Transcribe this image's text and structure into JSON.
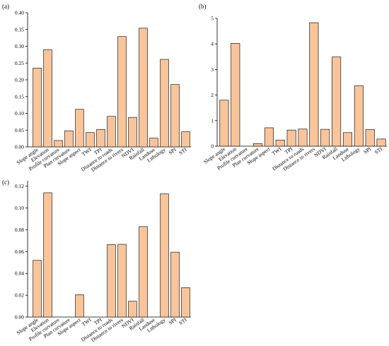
{
  "style": {
    "bar_fill": "#f9c49a",
    "bar_stroke": "#1a1a1a",
    "axis_color": "#000000"
  },
  "chart_data": [
    {
      "type": "bar",
      "panel_label": "(a)",
      "categories": [
        "Slope angle",
        "Elevation",
        "Profile curvature",
        "Plan curvature",
        "Slope aspect",
        "TWI",
        "TPI",
        "Distance to roads",
        "Distance to rivers",
        "NDVI",
        "Rainfall",
        "Landuse",
        "Lithology",
        "SPI",
        "STI"
      ],
      "values": [
        0.235,
        0.29,
        0.019,
        0.048,
        0.112,
        0.043,
        0.052,
        0.091,
        0.329,
        0.088,
        0.354,
        0.026,
        0.261,
        0.186,
        0.045
      ],
      "yticks": [
        "0.00",
        "0.05",
        "0.10",
        "0.15",
        "0.20",
        "0.25",
        "0.30",
        "0.35",
        "0.40"
      ],
      "ylim": [
        0,
        0.4
      ],
      "grid": false
    },
    {
      "type": "bar",
      "panel_label": "(b)",
      "categories": [
        "Slope angle",
        "Elevation",
        "Profile curvature",
        "Plan curvature",
        "Slope aspect",
        "TWI",
        "TPI",
        "Distance to roads",
        "Distance to rivers",
        "NDVI",
        "Rainfall",
        "Landuse",
        "Lithology",
        "SPI",
        "STI"
      ],
      "values": [
        1.8,
        4.02,
        0.0,
        0.1,
        0.72,
        0.24,
        0.63,
        0.67,
        4.83,
        0.66,
        3.49,
        0.53,
        2.36,
        0.65,
        0.28
      ],
      "yticks": [
        "0",
        "1",
        "2",
        "3",
        "4",
        "5"
      ],
      "ylim": [
        0,
        5
      ],
      "grid": false
    },
    {
      "type": "bar",
      "panel_label": "(c)",
      "categories": [
        "Slope angle",
        "Elevation",
        "Profile curvature",
        "Plan curvature",
        "Slope aspect",
        "TWI",
        "TPI",
        "Distance to roads",
        "Distance to rivers",
        "NDVI",
        "Rainfall",
        "Landuse",
        "Lithology",
        "SPI",
        "STI"
      ],
      "values": [
        0.052,
        0.114,
        0.0,
        0.0,
        0.0205,
        0.0,
        0.0,
        0.0665,
        0.0667,
        0.0145,
        0.083,
        0.0,
        0.113,
        0.0595,
        0.027
      ],
      "yticks": [
        "0.00",
        "0.02",
        "0.04",
        "0.06",
        "0.08",
        "0.10",
        "0.12"
      ],
      "ylim": [
        0,
        0.125
      ],
      "grid": false
    }
  ]
}
